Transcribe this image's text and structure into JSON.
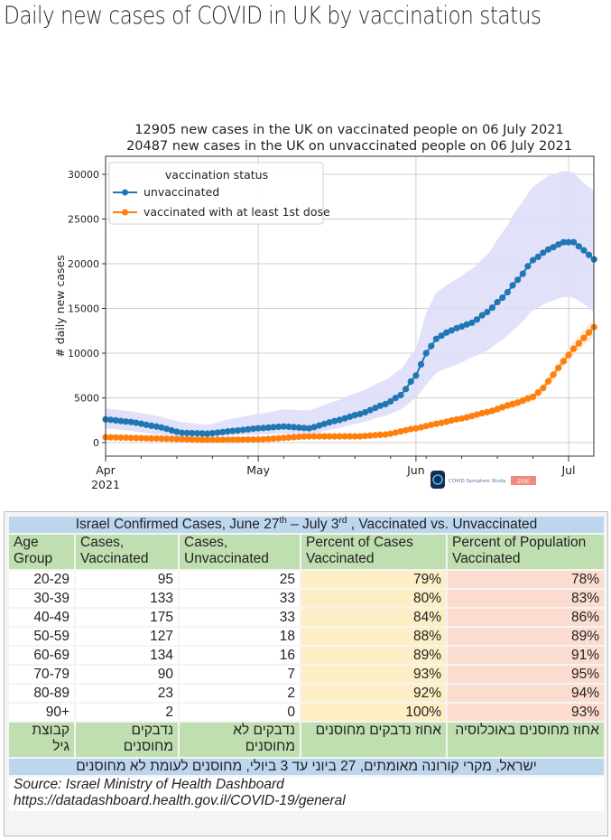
{
  "page": {
    "title": "Daily new cases of COVID in UK by vaccination status"
  },
  "chart_data": {
    "type": "line",
    "title_lines": [
      "12905 new cases in the UK on vaccinated people on 06 July 2021",
      "20487 new cases in the UK on unvaccinated people on 06 July 2021"
    ],
    "xlabel": "",
    "ylabel": "# daily new cases",
    "x_start": "2021-04-01",
    "x_end": "2021-07-06",
    "x_ticks": [
      {
        "label": "Apr",
        "sublabel": "2021",
        "day": 0
      },
      {
        "label": "May",
        "sublabel": "",
        "day": 30
      },
      {
        "label": "Jun",
        "sublabel": "",
        "day": 61
      },
      {
        "label": "Jul",
        "sublabel": "",
        "day": 91
      }
    ],
    "ylim": [
      -1500,
      32000
    ],
    "y_ticks": [
      0,
      5000,
      10000,
      15000,
      20000,
      25000,
      30000
    ],
    "grid": true,
    "legend": {
      "title": "vaccination status",
      "placement": "top-left",
      "entries": [
        "unvaccinated",
        "vaccinated with at least 1st dose"
      ]
    },
    "watermark": {
      "text": "COVID Symptom Study",
      "badge": "ZOE"
    },
    "series": [
      {
        "name": "unvaccinated",
        "color": "#1f77b4",
        "band_color": "#dcdcf8",
        "keyframes_day": [
          0,
          5,
          10,
          15,
          20,
          25,
          30,
          35,
          40,
          45,
          50,
          55,
          58,
          61,
          63,
          65,
          67,
          69,
          72,
          75,
          78,
          81,
          84,
          87,
          90,
          92,
          94,
          96
        ],
        "keyframes_value": [
          2600,
          2300,
          1800,
          1100,
          1000,
          1300,
          1600,
          1800,
          1600,
          2400,
          3200,
          4300,
          5300,
          7500,
          10000,
          11600,
          12300,
          12800,
          13400,
          14600,
          16200,
          18200,
          20400,
          21600,
          22400,
          22400,
          21500,
          20487
        ],
        "band_low": [
          1600,
          1300,
          900,
          600,
          600,
          800,
          900,
          1000,
          900,
          1500,
          2200,
          3000,
          3700,
          5000,
          6500,
          7800,
          8300,
          8700,
          9500,
          10300,
          11500,
          13000,
          14800,
          15700,
          16300,
          16200,
          15500,
          14600
        ],
        "band_high": [
          3800,
          3500,
          3000,
          2300,
          2000,
          2700,
          3200,
          3700,
          3600,
          4600,
          5700,
          7000,
          8200,
          10500,
          14500,
          16800,
          17600,
          18300,
          19400,
          21000,
          23500,
          26200,
          28600,
          29800,
          30400,
          30200,
          29000,
          28200
        ]
      },
      {
        "name": "vaccinated with at least 1st dose",
        "color": "#ff7f0e",
        "band_color": "#fde4c4",
        "keyframes_day": [
          0,
          10,
          20,
          30,
          40,
          50,
          55,
          61,
          65,
          70,
          75,
          80,
          84,
          86,
          88,
          90,
          92,
          94,
          96
        ],
        "keyframes_value": [
          600,
          450,
          300,
          350,
          700,
          700,
          900,
          1600,
          2100,
          2700,
          3400,
          4300,
          5100,
          6100,
          7600,
          9100,
          10500,
          11700,
          12905
        ],
        "band_low": [
          450,
          330,
          220,
          260,
          560,
          560,
          740,
          1360,
          1820,
          2370,
          3020,
          3850,
          4600,
          5550,
          6950,
          8400,
          9700,
          10800,
          11900
        ],
        "band_high": [
          750,
          570,
          380,
          440,
          840,
          840,
          1060,
          1840,
          2380,
          3030,
          3780,
          4750,
          5600,
          6650,
          8250,
          9800,
          11300,
          12600,
          13900
        ]
      }
    ]
  },
  "table": {
    "title_prefix": "Israel Confirmed Cases, June 27",
    "title_sup1": "th",
    "title_mid": " – July 3",
    "title_sup2": "rd",
    "title_suffix": " , Vaccinated vs. Unvaccinated",
    "headers": [
      [
        "Age",
        "Group"
      ],
      [
        "Cases,",
        "Vaccinated"
      ],
      [
        "Cases,",
        "Unvaccinated"
      ],
      [
        "Percent of Cases",
        "Vaccinated"
      ],
      [
        "Percent of Population",
        "Vaccinated"
      ]
    ],
    "rows": [
      {
        "age": "20-29",
        "vacc": "95",
        "unvacc": "25",
        "pct_cases": "79%",
        "pct_pop": "78%"
      },
      {
        "age": "30-39",
        "vacc": "133",
        "unvacc": "33",
        "pct_cases": "80%",
        "pct_pop": "83%"
      },
      {
        "age": "40-49",
        "vacc": "175",
        "unvacc": "33",
        "pct_cases": "84%",
        "pct_pop": "86%"
      },
      {
        "age": "50-59",
        "vacc": "127",
        "unvacc": "18",
        "pct_cases": "88%",
        "pct_pop": "89%"
      },
      {
        "age": "60-69",
        "vacc": "134",
        "unvacc": "16",
        "pct_cases": "89%",
        "pct_pop": "91%"
      },
      {
        "age": "70-79",
        "vacc": "90",
        "unvacc": "7",
        "pct_cases": "93%",
        "pct_pop": "95%"
      },
      {
        "age": "80-89",
        "vacc": "23",
        "unvacc": "2",
        "pct_cases": "92%",
        "pct_pop": "94%"
      },
      {
        "age": "90+",
        "vacc": "2",
        "unvacc": "0",
        "pct_cases": "100%",
        "pct_pop": "93%"
      }
    ],
    "hebrew_headers": [
      [
        "קבוצת",
        "גיל"
      ],
      [
        "נדבקים",
        "מחוסנים"
      ],
      [
        "נדבקים לא",
        "מחוסנים"
      ],
      [
        "אחוז נדבקים מחוסנים",
        ""
      ],
      [
        "אחוז מחוסנים באוכלוסיה",
        ""
      ]
    ],
    "hebrew_title": "ישראל, מקרי קורונה מאומתים, 27 ביוני עד 3 ביולי, מחוסנים לעומת לא מחוסנים",
    "source_line1": "Source: Israel Ministry of Health Dashboard",
    "source_line2": "https://datadashboard.health.gov.il/COVID-19/general"
  }
}
